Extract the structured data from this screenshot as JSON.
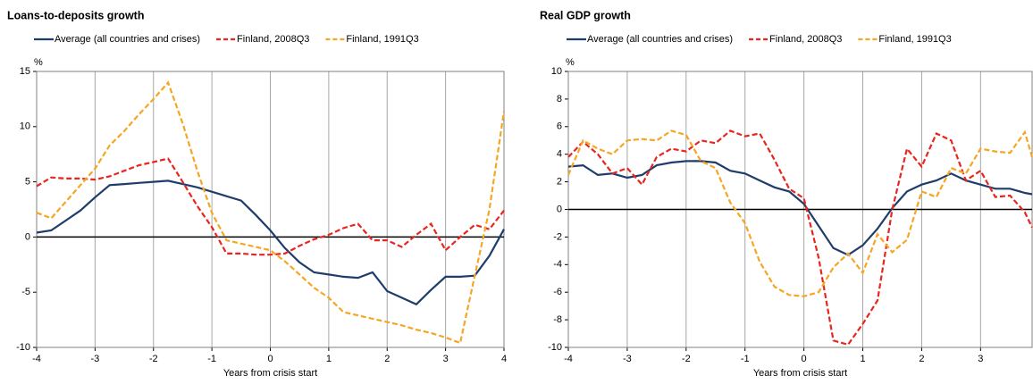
{
  "chart_data": [
    {
      "type": "line",
      "title": "Loans-to-deposits growth",
      "y_unit": "%",
      "x_label": "Years from crisis start",
      "x": [
        -4,
        -3.75,
        -3.5,
        -3.25,
        -3,
        -2.75,
        -2.5,
        -2.25,
        -2,
        -1.75,
        -1.5,
        -1.25,
        -1,
        -0.75,
        -0.5,
        -0.25,
        0,
        0.25,
        0.5,
        0.75,
        1,
        1.25,
        1.5,
        1.75,
        2,
        2.25,
        2.5,
        2.75,
        3,
        3.25,
        3.5,
        3.75,
        4
      ],
      "xlim": [
        -4,
        4
      ],
      "xticks": [
        -4,
        -3,
        -2,
        -1,
        0,
        1,
        2,
        3,
        4
      ],
      "ylim": [
        -10,
        15
      ],
      "yticks": [
        -10,
        -5,
        0,
        5,
        10,
        15
      ],
      "grid": true,
      "series": [
        {
          "name": "Average (all countries and crises)",
          "color": "#1f3d6b",
          "dash": "solid",
          "values": [
            0.4,
            0.6,
            1.5,
            2.4,
            3.6,
            4.7,
            4.8,
            4.9,
            5.0,
            5.1,
            4.8,
            4.5,
            4.1,
            3.7,
            3.3,
            2.0,
            0.6,
            -1.0,
            -2.3,
            -3.2,
            -3.4,
            -3.6,
            -3.7,
            -3.2,
            -4.9,
            -5.5,
            -6.1,
            -4.8,
            -3.6,
            -3.6,
            -3.5,
            -1.7,
            0.7
          ]
        },
        {
          "name": "Finland, 2008Q3",
          "color": "#e8251e",
          "dash": "dashed",
          "values": [
            4.6,
            5.4,
            5.3,
            5.3,
            5.2,
            5.5,
            6.0,
            6.5,
            6.8,
            7.1,
            5.0,
            2.8,
            0.9,
            -1.5,
            -1.5,
            -1.6,
            -1.6,
            -1.5,
            -0.8,
            -0.2,
            0.2,
            0.8,
            1.2,
            -0.3,
            -0.3,
            -0.9,
            0.2,
            1.2,
            -1.2,
            0.0,
            1.1,
            0.7,
            2.4
          ]
        },
        {
          "name": "Finland, 1991Q3",
          "color": "#f5a623",
          "dash": "dashed",
          "values": [
            2.2,
            1.7,
            3.2,
            4.7,
            6.2,
            8.3,
            9.6,
            11.1,
            12.5,
            14.0,
            10.3,
            6.0,
            2.2,
            -0.3,
            -0.6,
            -0.9,
            -1.2,
            -2.2,
            -3.4,
            -4.6,
            -5.5,
            -6.8,
            -7.1,
            -7.4,
            -7.7,
            -8.0,
            -8.4,
            -8.7,
            -9.1,
            -9.6,
            -3.5,
            2.5,
            11.4
          ]
        }
      ]
    },
    {
      "type": "line",
      "title": "Real GDP growth",
      "y_unit": "%",
      "x_label": "Years from crisis start",
      "x": [
        -4,
        -3.75,
        -3.5,
        -3.25,
        -3,
        -2.75,
        -2.5,
        -2.25,
        -2,
        -1.75,
        -1.5,
        -1.25,
        -1,
        -0.75,
        -0.5,
        -0.25,
        0,
        0.25,
        0.5,
        0.75,
        1,
        1.25,
        1.5,
        1.75,
        2,
        2.25,
        2.5,
        2.75,
        3,
        3.25,
        3.5,
        3.75,
        3.875
      ],
      "xlim": [
        -4,
        3.875
      ],
      "xticks": [
        -4,
        -3,
        -2,
        -1,
        0,
        1,
        2,
        3
      ],
      "ylim": [
        -10,
        10
      ],
      "yticks": [
        -10,
        -8,
        -6,
        -4,
        -2,
        0,
        2,
        4,
        6,
        8,
        10
      ],
      "grid": true,
      "series": [
        {
          "name": "Average (all countries and crises)",
          "color": "#1f3d6b",
          "dash": "solid",
          "values": [
            3.1,
            3.2,
            2.5,
            2.6,
            2.3,
            2.5,
            3.2,
            3.4,
            3.5,
            3.5,
            3.4,
            2.8,
            2.6,
            2.1,
            1.6,
            1.3,
            0.4,
            -1.2,
            -2.8,
            -3.3,
            -2.6,
            -1.4,
            0.1,
            1.3,
            1.8,
            2.1,
            2.6,
            2.1,
            1.8,
            1.5,
            1.5,
            1.2,
            1.1
          ]
        },
        {
          "name": "Finland, 2008Q3",
          "color": "#e8251e",
          "dash": "dashed",
          "values": [
            3.8,
            4.9,
            4.0,
            2.6,
            3.0,
            1.8,
            3.8,
            4.4,
            4.2,
            5.0,
            4.8,
            5.7,
            5.3,
            5.5,
            3.6,
            1.5,
            0.8,
            -3.5,
            -9.5,
            -9.8,
            -8.3,
            -6.6,
            0.0,
            4.4,
            3.1,
            5.5,
            5.0,
            2.1,
            2.8,
            0.9,
            1.0,
            -0.2,
            -1.3
          ]
        },
        {
          "name": "Finland, 1991Q3",
          "color": "#f5a623",
          "dash": "dashed",
          "values": [
            2.5,
            5.0,
            4.4,
            4.0,
            5.0,
            5.1,
            5.0,
            5.7,
            5.4,
            3.5,
            3.0,
            0.5,
            -1.0,
            -3.8,
            -5.6,
            -6.2,
            -6.3,
            -6.0,
            -4.2,
            -3.2,
            -4.6,
            -1.8,
            -3.1,
            -2.2,
            1.3,
            0.9,
            3.0,
            2.6,
            4.4,
            4.2,
            4.1,
            5.6,
            3.8
          ]
        }
      ]
    }
  ]
}
